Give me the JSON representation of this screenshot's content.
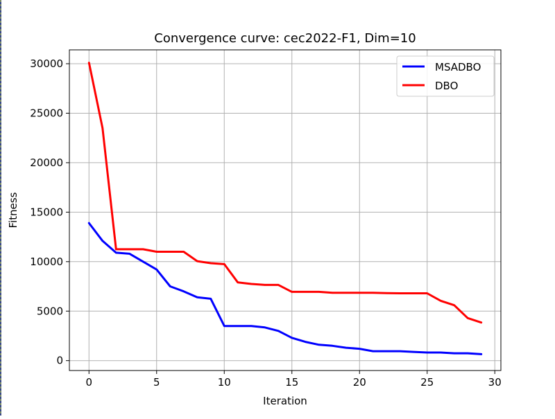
{
  "chart_data": {
    "type": "line",
    "title": "Convergence curve:  cec2022-F1, Dim=10",
    "xlabel": "Iteration",
    "ylabel": "Fitness",
    "xlim": [
      -1.45,
      30.45
    ],
    "ylim": [
      -1000,
      31400
    ],
    "xticks": [
      0,
      5,
      10,
      15,
      20,
      25,
      30
    ],
    "yticks": [
      0,
      5000,
      10000,
      15000,
      20000,
      25000,
      30000
    ],
    "xtick_labels": [
      "0",
      "5",
      "10",
      "15",
      "20",
      "25",
      "30"
    ],
    "ytick_labels": [
      "0",
      "5000",
      "10000",
      "15000",
      "20000",
      "25000",
      "30000"
    ],
    "grid": true,
    "legend_position": "top-right",
    "x": [
      0,
      1,
      2,
      3,
      4,
      5,
      6,
      7,
      8,
      9,
      10,
      11,
      12,
      13,
      14,
      15,
      16,
      17,
      18,
      19,
      20,
      21,
      22,
      23,
      24,
      25,
      26,
      27,
      28,
      29
    ],
    "series": [
      {
        "name": "MSADBO",
        "color": "#0000ff",
        "values": [
          13900,
          12100,
          10900,
          10800,
          10000,
          9200,
          7500,
          7000,
          6400,
          6250,
          3500,
          3500,
          3500,
          3350,
          3000,
          2300,
          1900,
          1600,
          1500,
          1300,
          1200,
          950,
          950,
          950,
          880,
          820,
          820,
          740,
          740,
          650
        ]
      },
      {
        "name": "DBO",
        "color": "#ff0000",
        "values": [
          30100,
          23500,
          11250,
          11250,
          11250,
          11000,
          11000,
          11000,
          10050,
          9850,
          9750,
          7900,
          7750,
          7650,
          7650,
          6950,
          6950,
          6950,
          6850,
          6850,
          6850,
          6850,
          6820,
          6800,
          6800,
          6800,
          6050,
          5600,
          4300,
          3850
        ]
      }
    ]
  }
}
